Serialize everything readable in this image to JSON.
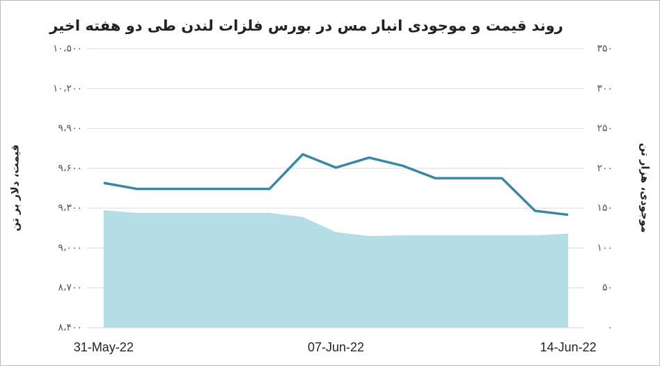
{
  "chart_data": {
    "type": "line-area",
    "title": "روند قیمت و موجودی انبار مس در بورس فلزات لندن طی دو هفته اخیر",
    "ylabel": "قیمت، دلار بر تن",
    "y2label": "موجودی، هزار تن",
    "categories": [
      "31-May-22",
      null,
      null,
      null,
      null,
      null,
      null,
      "07-Jun-22",
      null,
      null,
      null,
      null,
      null,
      null,
      "14-Jun-22"
    ],
    "series": [
      {
        "type": "area",
        "axis": "y2",
        "color": "#b5dde6",
        "values": [
          147.5,
          144,
          144,
          144,
          144,
          144,
          139,
          120,
          115,
          116,
          116,
          116,
          116,
          116,
          118
        ]
      },
      {
        "type": "line",
        "color": "#3a87a0",
        "values": [
          9490,
          9445,
          9445,
          9445,
          9445,
          9445,
          9705,
          9605,
          9680,
          9620,
          9525,
          9525,
          9525,
          9280,
          9250
        ]
      }
    ],
    "ylim": [
      8400,
      10500
    ],
    "yticks": [
      {
        "value": 8400,
        "label": "۸،۴۰۰"
      },
      {
        "value": 8700,
        "label": "۸،۷۰۰"
      },
      {
        "value": 9000,
        "label": "۹،۰۰۰"
      },
      {
        "value": 9300,
        "label": "۹،۳۰۰"
      },
      {
        "value": 9600,
        "label": "۹،۶۰۰"
      },
      {
        "value": 9900,
        "label": "۹،۹۰۰"
      },
      {
        "value": 10200,
        "label": "۱۰،۲۰۰"
      },
      {
        "value": 10500,
        "label": "۱۰،۵۰۰"
      }
    ],
    "y2lim": [
      0,
      350
    ],
    "y2ticks": [
      {
        "value": 0,
        "label": "۰"
      },
      {
        "value": 50,
        "label": "۵۰"
      },
      {
        "value": 100,
        "label": "۱۰۰"
      },
      {
        "value": 150,
        "label": "۱۵۰"
      },
      {
        "value": 200,
        "label": "۲۰۰"
      },
      {
        "value": 250,
        "label": "۲۵۰"
      },
      {
        "value": 300,
        "label": "۳۰۰"
      },
      {
        "value": 350,
        "label": "۳۵۰"
      }
    ],
    "grid": true
  }
}
